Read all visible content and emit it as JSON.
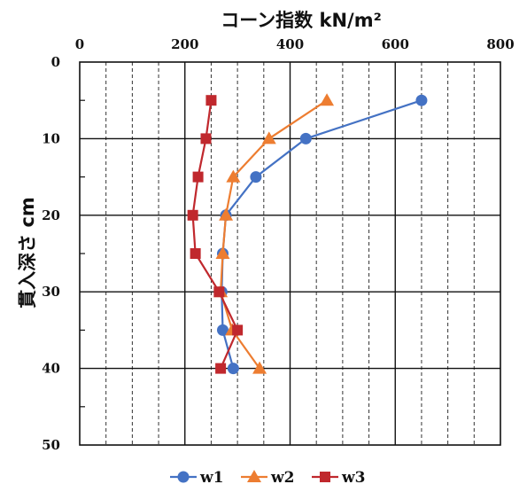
{
  "chart_data": {
    "type": "line",
    "title": "",
    "xlabel": "コーン指数 kN/m²",
    "ylabel": "貫入深さ cm",
    "xlim": [
      0,
      800
    ],
    "ylim": [
      0,
      50
    ],
    "y_inverted": true,
    "x_axis_position": "top",
    "x_ticks": [
      "0",
      "200",
      "400",
      "600",
      "800"
    ],
    "y_ticks": [
      "0",
      "10",
      "20",
      "30",
      "40",
      "50"
    ],
    "grid": "major solid, minor dashed vertical",
    "legend_position": "bottom",
    "series": [
      {
        "name": "w1",
        "color": "#4472C4",
        "marker": "circle",
        "points": [
          [
            650,
            5
          ],
          [
            430,
            10
          ],
          [
            335,
            15
          ],
          [
            278,
            20
          ],
          [
            272,
            25
          ],
          [
            270,
            30
          ],
          [
            272,
            35
          ],
          [
            292,
            40
          ]
        ]
      },
      {
        "name": "w2",
        "color": "#ED7D31",
        "marker": "triangle",
        "points": [
          [
            470,
            5
          ],
          [
            360,
            10
          ],
          [
            292,
            15
          ],
          [
            278,
            20
          ],
          [
            272,
            25
          ],
          [
            268,
            30
          ],
          [
            290,
            35
          ],
          [
            342,
            40
          ]
        ]
      },
      {
        "name": "w3",
        "color": "#C0282D",
        "marker": "square",
        "points": [
          [
            250,
            5
          ],
          [
            240,
            10
          ],
          [
            225,
            15
          ],
          [
            215,
            20
          ],
          [
            220,
            25
          ],
          [
            265,
            30
          ],
          [
            300,
            35
          ],
          [
            268,
            40
          ]
        ]
      }
    ]
  }
}
